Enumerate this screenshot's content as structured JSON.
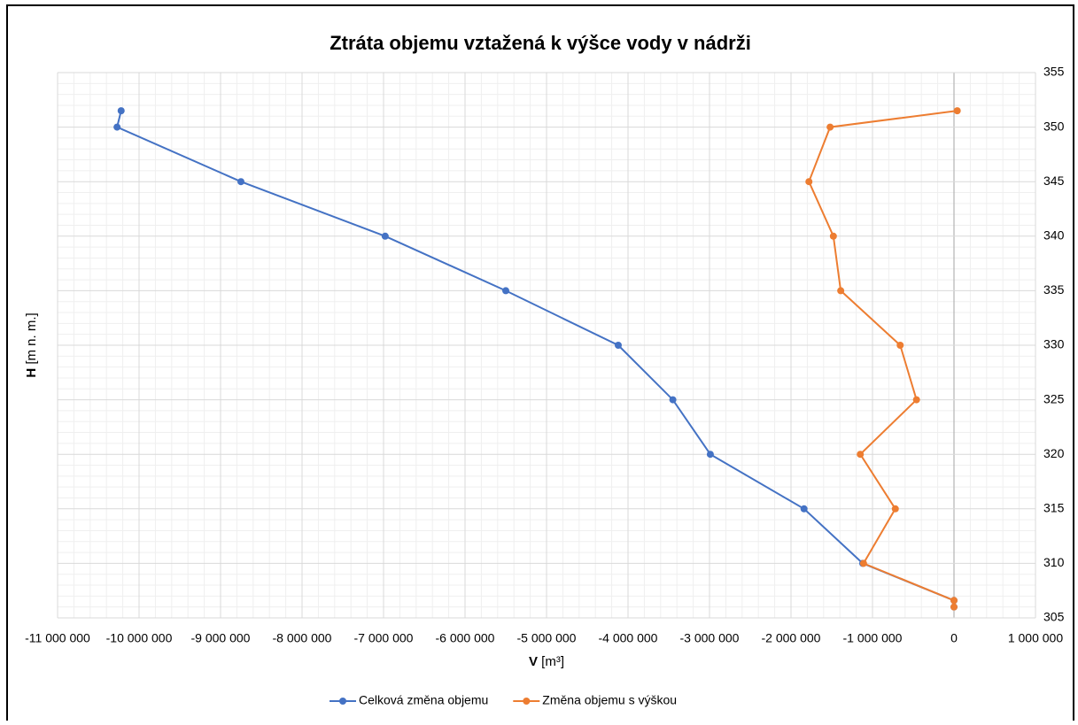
{
  "chart_data": {
    "type": "line",
    "title": "Ztráta objemu vztažená k výšce vody v nádrži",
    "xlabel": "V",
    "xunit": "[m³]",
    "ylabel": "H",
    "yunit": "[m n. m.]",
    "series": [
      {
        "name": "Celková změna objemu",
        "color": "#4472c4",
        "x": [
          0,
          0,
          -1120000,
          -1840000,
          -2990000,
          -3450000,
          -4120000,
          -5500000,
          -6980000,
          -8750000,
          -10270000,
          -10220000
        ],
        "values": [
          306,
          306.6,
          310,
          315,
          320,
          325,
          330,
          335,
          340,
          345,
          350,
          351.5
        ]
      },
      {
        "name": "Změna objemu s výškou",
        "color": "#ed7d31",
        "x": [
          0,
          0,
          -1110000,
          -720000,
          -1150000,
          -460000,
          -660000,
          -1390000,
          -1480000,
          -1780000,
          -1520000,
          40000
        ],
        "values": [
          306,
          306.6,
          310,
          315,
          320,
          325,
          330,
          335,
          340,
          345,
          350,
          351.5
        ]
      }
    ],
    "xlim": [
      -11000000,
      1000000
    ],
    "xticks": [
      {
        "value": -11000000,
        "label": "-11 000 000"
      },
      {
        "value": -10000000,
        "label": "-10 000 000"
      },
      {
        "value": -9000000,
        "label": "-9 000 000"
      },
      {
        "value": -8000000,
        "label": "-8 000 000"
      },
      {
        "value": -7000000,
        "label": "-7 000 000"
      },
      {
        "value": -6000000,
        "label": "-6 000 000"
      },
      {
        "value": -5000000,
        "label": "-5 000 000"
      },
      {
        "value": -4000000,
        "label": "-4 000 000"
      },
      {
        "value": -3000000,
        "label": "-3 000 000"
      },
      {
        "value": -2000000,
        "label": "-2 000 000"
      },
      {
        "value": -1000000,
        "label": "-1 000 000"
      },
      0,
      {
        "value": 1000000,
        "label": "1 000 000"
      }
    ],
    "ylim": [
      305,
      355
    ],
    "yticks": [
      305,
      310,
      315,
      320,
      325,
      330,
      335,
      340,
      345,
      350,
      355
    ],
    "grid": true,
    "minor_grid": true,
    "legend": "bottom"
  }
}
